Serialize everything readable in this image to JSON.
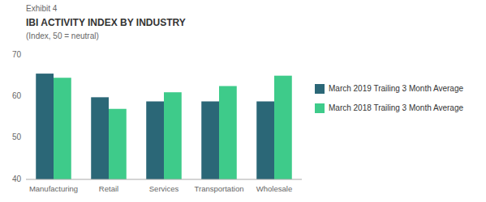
{
  "chart_data": {
    "type": "bar",
    "title": "IBI ACTIVITY INDEX BY INDUSTRY",
    "subtitle": "(Index, 50 = neutral)",
    "annotations": [
      "Exhibit 4"
    ],
    "categories": [
      "Manufacturing",
      "Retail",
      "Services",
      "Transportation",
      "Wholesale"
    ],
    "series": [
      {
        "name": "March 2019 Trailing 3 Month Average",
        "color": "#2b6777",
        "values": [
          65.5,
          59.8,
          58.8,
          58.8,
          58.8
        ]
      },
      {
        "name": "March 2018 Trailing 3 Month Average",
        "color": "#3ecb8a",
        "values": [
          64.5,
          57.0,
          61.0,
          62.5,
          65.0
        ]
      }
    ],
    "ylim": [
      40,
      70
    ],
    "yticks": [
      40,
      50,
      60,
      70
    ],
    "grid": false,
    "legend": "right"
  }
}
